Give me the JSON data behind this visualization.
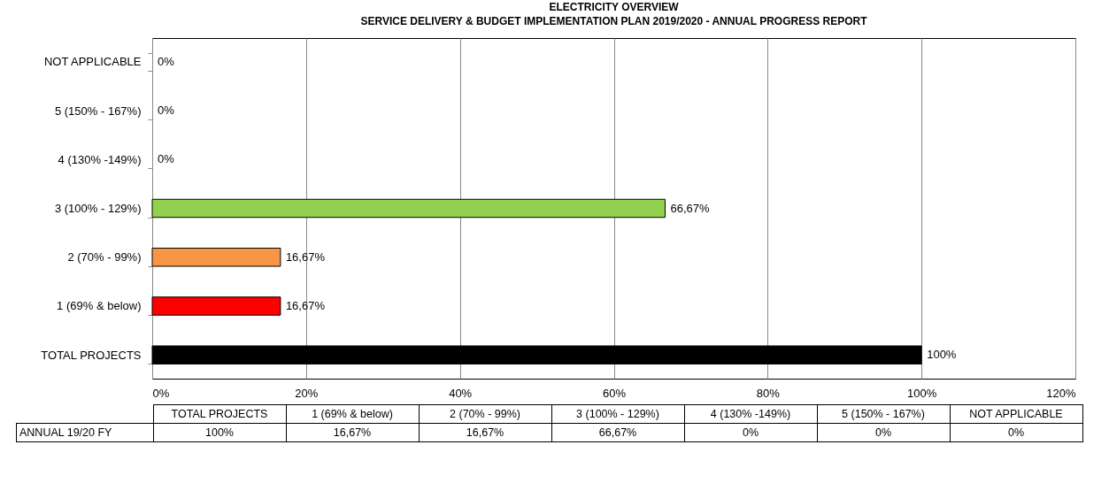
{
  "chart_data": {
    "type": "bar",
    "orientation": "horizontal",
    "title": "ELECTRICITY OVERVIEW",
    "subtitle": "SERVICE DELIVERY & BUDGET IMPLEMENTATION PLAN 2019/2020 - ANNUAL PROGRESS REPORT",
    "categories": [
      "NOT APPLICABLE",
      "5 (150% - 167%)",
      "4 (130% -149%)",
      "3 (100% - 129%)",
      "2 (70% - 99%)",
      "1 (69% & below)",
      "TOTAL PROJECTS"
    ],
    "series": [
      {
        "name": "ANNUAL 19/20 FY",
        "values": [
          0,
          0,
          0,
          66.67,
          16.67,
          16.67,
          100
        ],
        "colors": [
          null,
          null,
          null,
          "#92d050",
          "#f79646",
          "#ff0000",
          "#000000"
        ],
        "value_labels": [
          "0%",
          "0%",
          "0%",
          "66,67%",
          "16,67%",
          "16,67%",
          "100%"
        ]
      }
    ],
    "xlim": [
      0,
      120
    ],
    "xticks": [
      {
        "value": 0,
        "label": "0%"
      },
      {
        "value": 20,
        "label": "20%"
      },
      {
        "value": 40,
        "label": "40%"
      },
      {
        "value": 60,
        "label": "60%"
      },
      {
        "value": 80,
        "label": "80%"
      },
      {
        "value": 100,
        "label": "100%"
      },
      {
        "value": 120,
        "label": "120%"
      }
    ],
    "grid": "x",
    "legend": false
  }
}
